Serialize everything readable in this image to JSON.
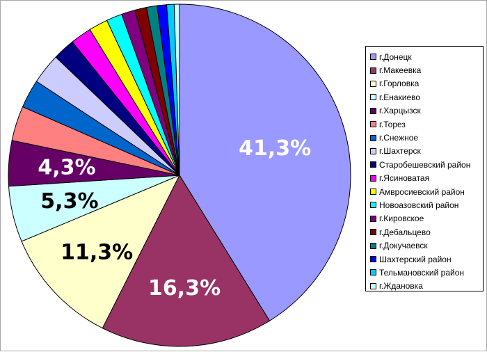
{
  "chart_data": {
    "type": "pie",
    "slices": [
      {
        "name": "г.Донецк",
        "value": 41.3,
        "label": "41,3%",
        "color": "#9999ff",
        "label_color": "#ffffff"
      },
      {
        "name": "г.Макеевка",
        "value": 16.3,
        "label": "16,3%",
        "color": "#993366",
        "label_color": "#ffffff"
      },
      {
        "name": "г.Горловка",
        "value": 11.3,
        "label": "11,3%",
        "color": "#ffffcc",
        "label_color": "#000000"
      },
      {
        "name": "г.Енакиево",
        "value": 5.3,
        "label": "5,3%",
        "color": "#ccffff",
        "label_color": "#000000"
      },
      {
        "name": "г.Харцызск",
        "value": 4.3,
        "label": "4,3%",
        "color": "#660066",
        "label_color": "#ffffff"
      },
      {
        "name": "г.Торез",
        "value": 3.3,
        "label": "",
        "color": "#ff8080",
        "label_color": "#000000"
      },
      {
        "name": "г.Снежное",
        "value": 2.7,
        "label": "",
        "color": "#0066cc",
        "label_color": "#000000"
      },
      {
        "name": "г.Шахтерск",
        "value": 2.9,
        "label": "",
        "color": "#ccccff",
        "label_color": "#000000"
      },
      {
        "name": "Старобешевский район",
        "value": 2.1,
        "label": "",
        "color": "#000080",
        "label_color": "#000000"
      },
      {
        "name": "г.Ясиноватая",
        "value": 2.0,
        "label": "",
        "color": "#ff00ff",
        "label_color": "#000000"
      },
      {
        "name": "Амвросиевский район",
        "value": 1.8,
        "label": "",
        "color": "#ffff00",
        "label_color": "#000000"
      },
      {
        "name": "Новоазовский район",
        "value": 1.5,
        "label": "",
        "color": "#00ffff",
        "label_color": "#000000"
      },
      {
        "name": "г.Кировское",
        "value": 1.3,
        "label": "",
        "color": "#800080",
        "label_color": "#000000"
      },
      {
        "name": "г.Дебальцево",
        "value": 1.1,
        "label": "",
        "color": "#800000",
        "label_color": "#000000"
      },
      {
        "name": "г.Докучаевск",
        "value": 1.0,
        "label": "",
        "color": "#008080",
        "label_color": "#000000"
      },
      {
        "name": "Шахтерский район",
        "value": 0.9,
        "label": "",
        "color": "#0000ff",
        "label_color": "#000000"
      },
      {
        "name": "Тельмановский район",
        "value": 0.7,
        "label": "",
        "color": "#00ccff",
        "label_color": "#000000"
      },
      {
        "name": "г.Ждановка",
        "value": 0.5,
        "label": "",
        "color": "#ccffff",
        "label_color": "#000000"
      }
    ],
    "start_angle": "top",
    "direction": "clockwise",
    "legend_position": "right"
  }
}
